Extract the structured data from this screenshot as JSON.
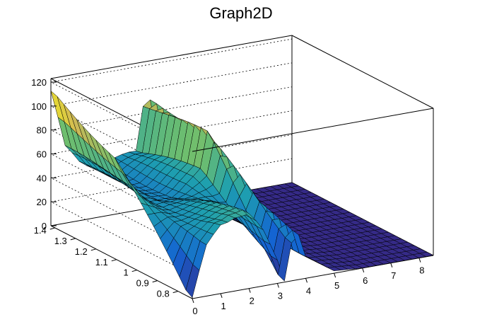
{
  "chart_data": {
    "type": "surface",
    "title": "Graph2D",
    "xlabel": "",
    "ylabel": "",
    "zlabel": "",
    "xlim": [
      0,
      8.5
    ],
    "ylim": [
      0.73,
      1.42
    ],
    "zlim": [
      0,
      123
    ],
    "grid": true,
    "legend": "none",
    "colormap": "viridis-like (blue to yellow)",
    "x_ticks": [
      "0",
      "1",
      "2",
      "3",
      "4",
      "5",
      "6",
      "7",
      "8"
    ],
    "y_ticks": [
      "0.8",
      "0.9",
      "1",
      "1.1",
      "1.2",
      "1.3",
      "1.4"
    ],
    "z_ticks": [
      "0",
      "20",
      "40",
      "60",
      "80",
      "100",
      "120"
    ],
    "x_tick_values": [
      0,
      1,
      2,
      3,
      4,
      5,
      6,
      7,
      8
    ],
    "y_tick_values": [
      0.8,
      0.9,
      1.0,
      1.1,
      1.2,
      1.3,
      1.4
    ],
    "z_tick_values": [
      0,
      20,
      40,
      60,
      80,
      100,
      120
    ],
    "surface_profiles": {
      "y_1.40_back_edge": {
        "x": [
          0,
          0.5,
          1,
          1.5,
          2,
          2.5,
          3,
          3.3,
          3.6,
          4,
          5,
          6,
          7,
          8.5
        ],
        "z": [
          112,
          62,
          50,
          45,
          44,
          46,
          50,
          96,
          92,
          10,
          0,
          0,
          0,
          0
        ]
      },
      "y_1.10_middle": {
        "x": [
          0,
          0.5,
          1,
          1.5,
          2,
          2.5,
          3,
          3.3,
          3.6,
          4,
          5,
          6,
          7,
          8.5
        ],
        "z": [
          85,
          62,
          45,
          40,
          44,
          55,
          62,
          96,
          72,
          20,
          2,
          0,
          0,
          0
        ]
      },
      "y_0.75_front_edge": {
        "x": [
          0,
          0.5,
          1,
          1.5,
          2,
          2.5,
          3,
          3.3,
          3.6,
          4,
          5,
          6,
          7,
          8.5
        ],
        "z": [
          0,
          40,
          58,
          64,
          62,
          44,
          20,
          0,
          52,
          18,
          2,
          0,
          0,
          0
        ]
      }
    }
  }
}
